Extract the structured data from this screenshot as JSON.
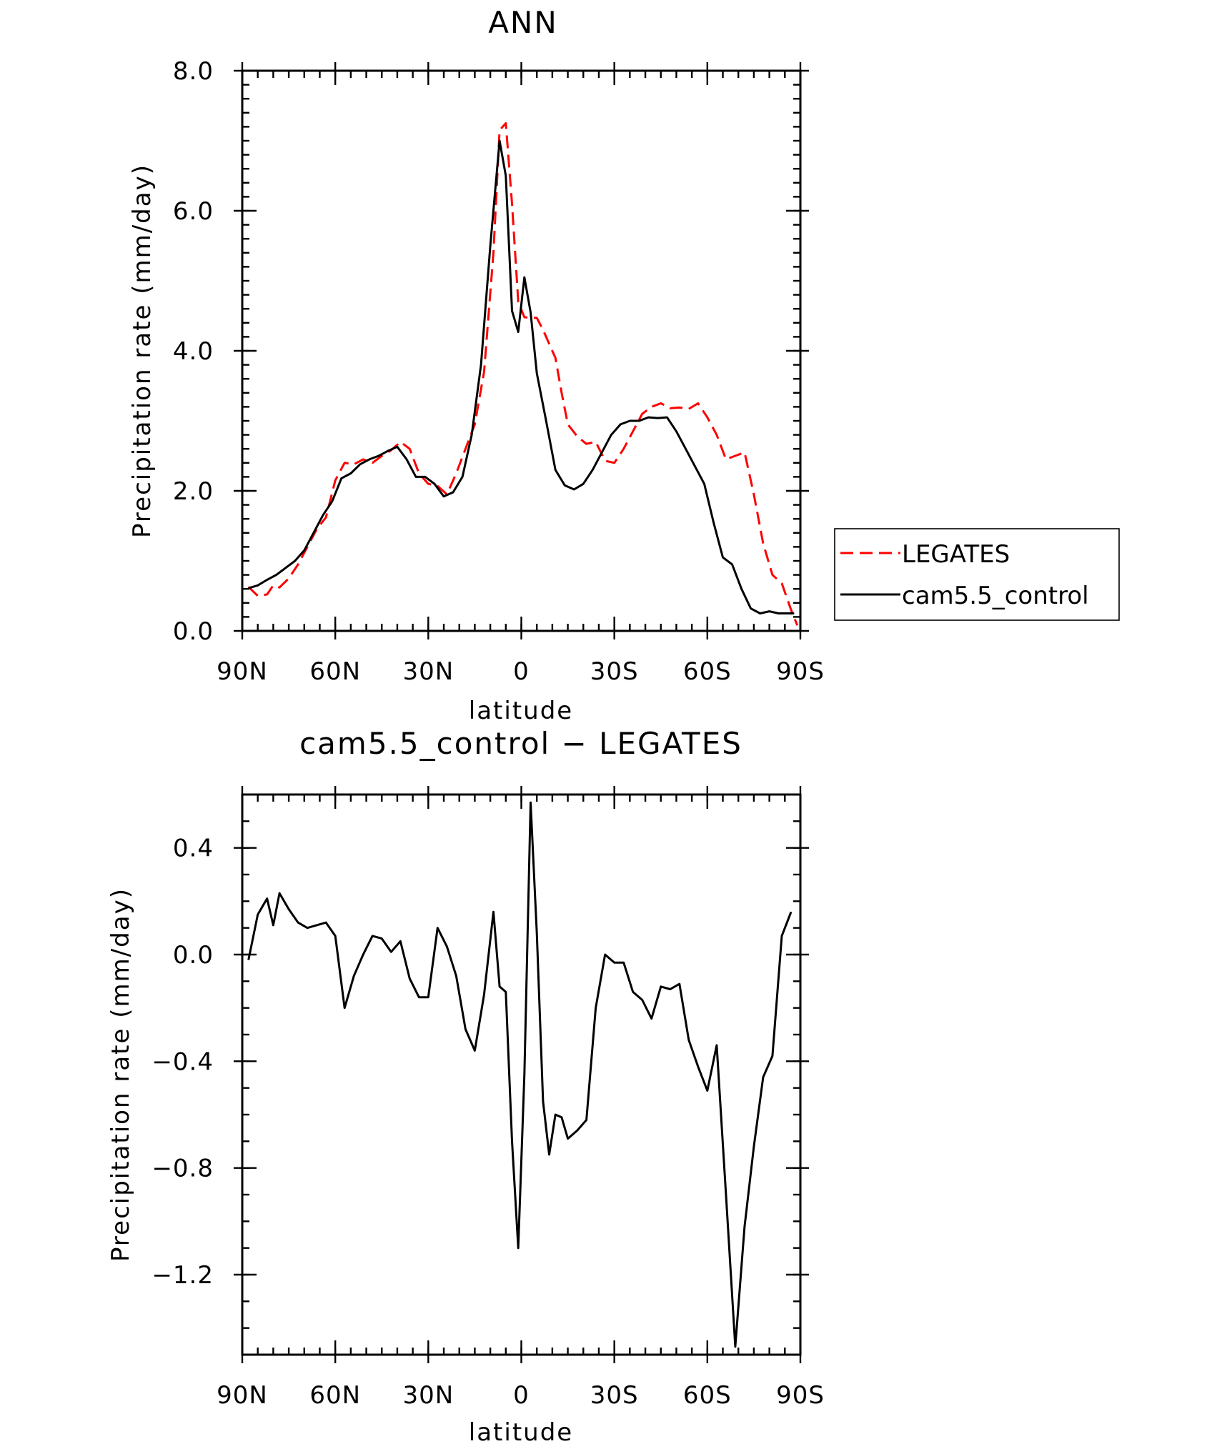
{
  "chart_data": [
    {
      "type": "line",
      "title": "ANN",
      "xlabel": "latitude",
      "ylabel": "Precipitation rate (mm/day)",
      "xlim": [
        90,
        -90
      ],
      "ylim": [
        0,
        8
      ],
      "x_ticks": [
        90,
        60,
        30,
        0,
        -30,
        -60,
        -90
      ],
      "x_tick_labels": [
        "90N",
        "60N",
        "30N",
        "0",
        "30S",
        "60S",
        "90S"
      ],
      "y_ticks": [
        0,
        2,
        4,
        6,
        8
      ],
      "y_tick_labels": [
        "0.0",
        "2.0",
        "4.0",
        "6.0",
        "8.0"
      ],
      "legend_position": "right-outside",
      "series": [
        {
          "name": "LEGATES",
          "color": "#ff0000",
          "dash": "dashed",
          "x": [
            88,
            85,
            82,
            80,
            78,
            75,
            72,
            69,
            66,
            63,
            60,
            57,
            54,
            51,
            48,
            45,
            42,
            39,
            36,
            33,
            30,
            27,
            24,
            21,
            18,
            15,
            12,
            9,
            7,
            5,
            3,
            1,
            -1,
            -3,
            -5,
            -7,
            -9,
            -11,
            -13,
            -15,
            -18,
            -21,
            -24,
            -27,
            -30,
            -33,
            -36,
            -39,
            -42,
            -45,
            -48,
            -51,
            -54,
            -57,
            -60,
            -63,
            -66,
            -69,
            -72,
            -75,
            -78,
            -81,
            -84,
            -87,
            -89
          ],
          "y": [
            0.63,
            0.5,
            0.52,
            0.65,
            0.62,
            0.75,
            0.95,
            1.2,
            1.45,
            1.62,
            2.15,
            2.4,
            2.38,
            2.45,
            2.4,
            2.5,
            2.58,
            2.7,
            2.6,
            2.25,
            2.1,
            2.07,
            1.95,
            2.25,
            2.6,
            2.95,
            3.7,
            5.4,
            7.15,
            7.25,
            6.1,
            4.7,
            4.48,
            4.47,
            4.47,
            4.3,
            4.1,
            3.9,
            3.4,
            2.95,
            2.78,
            2.67,
            2.7,
            2.43,
            2.4,
            2.6,
            2.85,
            3.1,
            3.2,
            3.25,
            3.18,
            3.19,
            3.17,
            3.25,
            3.05,
            2.8,
            2.45,
            2.5,
            2.55,
            1.95,
            1.25,
            0.8,
            0.68,
            0.3,
            0.08
          ]
        },
        {
          "name": "cam5.5_control",
          "color": "#000000",
          "dash": "solid",
          "x": [
            88,
            85,
            82,
            79,
            76,
            73,
            70,
            67,
            64,
            61,
            58,
            55,
            52,
            49,
            46,
            43,
            40,
            37,
            34,
            31,
            28,
            25,
            22,
            19,
            16,
            13,
            10,
            7,
            5,
            3,
            1,
            -1,
            -3,
            -5,
            -8,
            -11,
            -14,
            -17,
            -20,
            -23,
            -26,
            -29,
            -32,
            -35,
            -38,
            -41,
            -44,
            -47,
            -50,
            -53,
            -56,
            -59,
            -62,
            -65,
            -68,
            -71,
            -74,
            -77,
            -80,
            -83,
            -85,
            -88
          ],
          "y": [
            0.61,
            0.65,
            0.73,
            0.8,
            0.9,
            1.0,
            1.15,
            1.4,
            1.65,
            1.85,
            2.18,
            2.25,
            2.38,
            2.45,
            2.5,
            2.57,
            2.63,
            2.45,
            2.2,
            2.2,
            2.1,
            1.92,
            1.98,
            2.2,
            2.8,
            3.8,
            5.5,
            7.0,
            6.5,
            4.57,
            4.27,
            5.05,
            4.55,
            3.68,
            3.0,
            2.3,
            2.08,
            2.02,
            2.1,
            2.3,
            2.55,
            2.8,
            2.95,
            3.0,
            3.0,
            3.05,
            3.04,
            3.05,
            2.85,
            2.6,
            2.35,
            2.1,
            1.55,
            1.05,
            0.95,
            0.6,
            0.32,
            0.25,
            0.28,
            0.25,
            0.25,
            0.25
          ]
        }
      ]
    },
    {
      "type": "line",
      "title": "cam5.5_control − LEGATES",
      "xlabel": "latitude",
      "ylabel": "Precipitation rate (mm/day)",
      "xlim": [
        90,
        -90
      ],
      "ylim": [
        -1.5,
        0.6
      ],
      "x_ticks": [
        90,
        60,
        30,
        0,
        -30,
        -60,
        -90
      ],
      "x_tick_labels": [
        "90N",
        "60N",
        "30N",
        "0",
        "30S",
        "60S",
        "90S"
      ],
      "y_ticks": [
        -1.2,
        -0.8,
        -0.4,
        0.0,
        0.4
      ],
      "y_tick_labels": [
        "−1.2",
        "−0.8",
        "−0.4",
        "0.0",
        "0.4"
      ],
      "series": [
        {
          "color": "#000000",
          "dash": "solid",
          "x": [
            88,
            85,
            82,
            80,
            78,
            75,
            72,
            69,
            66,
            63,
            60,
            57,
            54,
            51,
            48,
            45,
            42,
            39,
            36,
            33,
            30,
            27,
            24,
            21,
            18,
            15,
            12,
            9,
            7,
            5,
            3,
            1,
            -1,
            -3,
            -5,
            -7,
            -9,
            -11,
            -13,
            -15,
            -18,
            -21,
            -24,
            -27,
            -30,
            -33,
            -36,
            -39,
            -42,
            -45,
            -48,
            -51,
            -54,
            -57,
            -60,
            -63,
            -66,
            -69,
            -72,
            -75,
            -78,
            -81,
            -84,
            -87
          ],
          "y": [
            -0.02,
            0.15,
            0.21,
            0.11,
            0.23,
            0.17,
            0.12,
            0.1,
            0.11,
            0.12,
            0.07,
            -0.2,
            -0.08,
            0.0,
            0.07,
            0.06,
            0.01,
            0.05,
            -0.09,
            -0.16,
            -0.16,
            0.1,
            0.03,
            -0.08,
            -0.28,
            -0.36,
            -0.15,
            0.16,
            -0.12,
            -0.14,
            -0.7,
            -1.1,
            -0.45,
            0.57,
            0.08,
            -0.55,
            -0.75,
            -0.6,
            -0.61,
            -0.69,
            -0.66,
            -0.62,
            -0.2,
            0.0,
            -0.03,
            -0.03,
            -0.14,
            -0.17,
            -0.24,
            -0.12,
            -0.13,
            -0.11,
            -0.32,
            -0.42,
            -0.51,
            -0.34,
            -0.9,
            -1.47,
            -1.02,
            -0.72,
            -0.46,
            -0.38,
            0.07,
            0.16
          ]
        }
      ]
    }
  ]
}
